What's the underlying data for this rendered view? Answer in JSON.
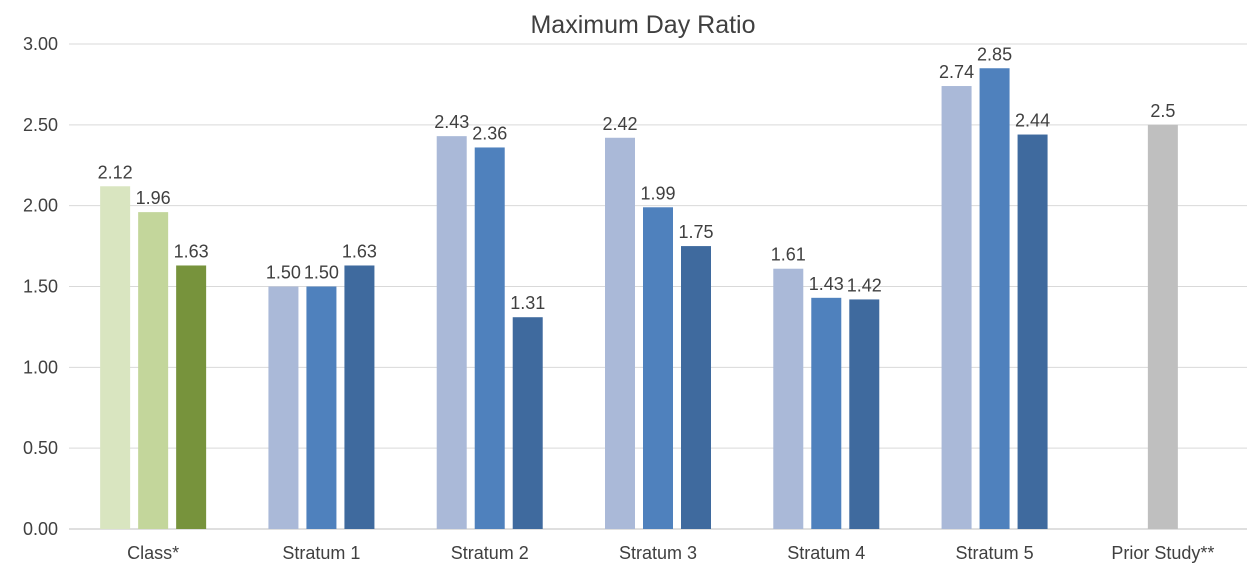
{
  "chart_data": {
    "type": "bar",
    "title": "Maximum Day Ratio",
    "xlabel": "",
    "ylabel": "",
    "ylim": [
      0,
      3
    ],
    "yticks": [
      "0.00",
      "0.50",
      "1.00",
      "1.50",
      "2.00",
      "2.50",
      "3.00"
    ],
    "grid": true,
    "legend": "none",
    "groups": [
      {
        "category": "Class*",
        "bars": [
          {
            "value": 2.12,
            "label": "2.12",
            "color": "#d9e5c0"
          },
          {
            "value": 1.96,
            "label": "1.96",
            "color": "#c3d69b"
          },
          {
            "value": 1.63,
            "label": "1.63",
            "color": "#77933c"
          }
        ]
      },
      {
        "category": "Stratum 1",
        "bars": [
          {
            "value": 1.5,
            "label": "1.50",
            "color": "#aab9d8"
          },
          {
            "value": 1.5,
            "label": "1.50",
            "color": "#4f81bd"
          },
          {
            "value": 1.63,
            "label": "1.63",
            "color": "#3f6a9e"
          }
        ]
      },
      {
        "category": "Stratum 2",
        "bars": [
          {
            "value": 2.43,
            "label": "2.43",
            "color": "#aab9d8"
          },
          {
            "value": 2.36,
            "label": "2.36",
            "color": "#4f81bd"
          },
          {
            "value": 1.31,
            "label": "1.31",
            "color": "#3f6a9e"
          }
        ]
      },
      {
        "category": "Stratum 3",
        "bars": [
          {
            "value": 2.42,
            "label": "2.42",
            "color": "#aab9d8"
          },
          {
            "value": 1.99,
            "label": "1.99",
            "color": "#4f81bd"
          },
          {
            "value": 1.75,
            "label": "1.75",
            "color": "#3f6a9e"
          }
        ]
      },
      {
        "category": "Stratum 4",
        "bars": [
          {
            "value": 1.61,
            "label": "1.61",
            "color": "#aab9d8"
          },
          {
            "value": 1.43,
            "label": "1.43",
            "color": "#4f81bd"
          },
          {
            "value": 1.42,
            "label": "1.42",
            "color": "#3f6a9e"
          }
        ]
      },
      {
        "category": "Stratum 5",
        "bars": [
          {
            "value": 2.74,
            "label": "2.74",
            "color": "#aab9d8"
          },
          {
            "value": 2.85,
            "label": "2.85",
            "color": "#4f81bd"
          },
          {
            "value": 2.44,
            "label": "2.44",
            "color": "#3f6a9e"
          }
        ]
      },
      {
        "category": "Prior Study**",
        "bars": [
          {
            "value": 2.5,
            "label": "2.5",
            "color": "#bfbfbf"
          }
        ]
      }
    ],
    "colors": {
      "grid": "#d9d9d9",
      "axis": "#bfbfbf",
      "text": "#404040"
    }
  }
}
